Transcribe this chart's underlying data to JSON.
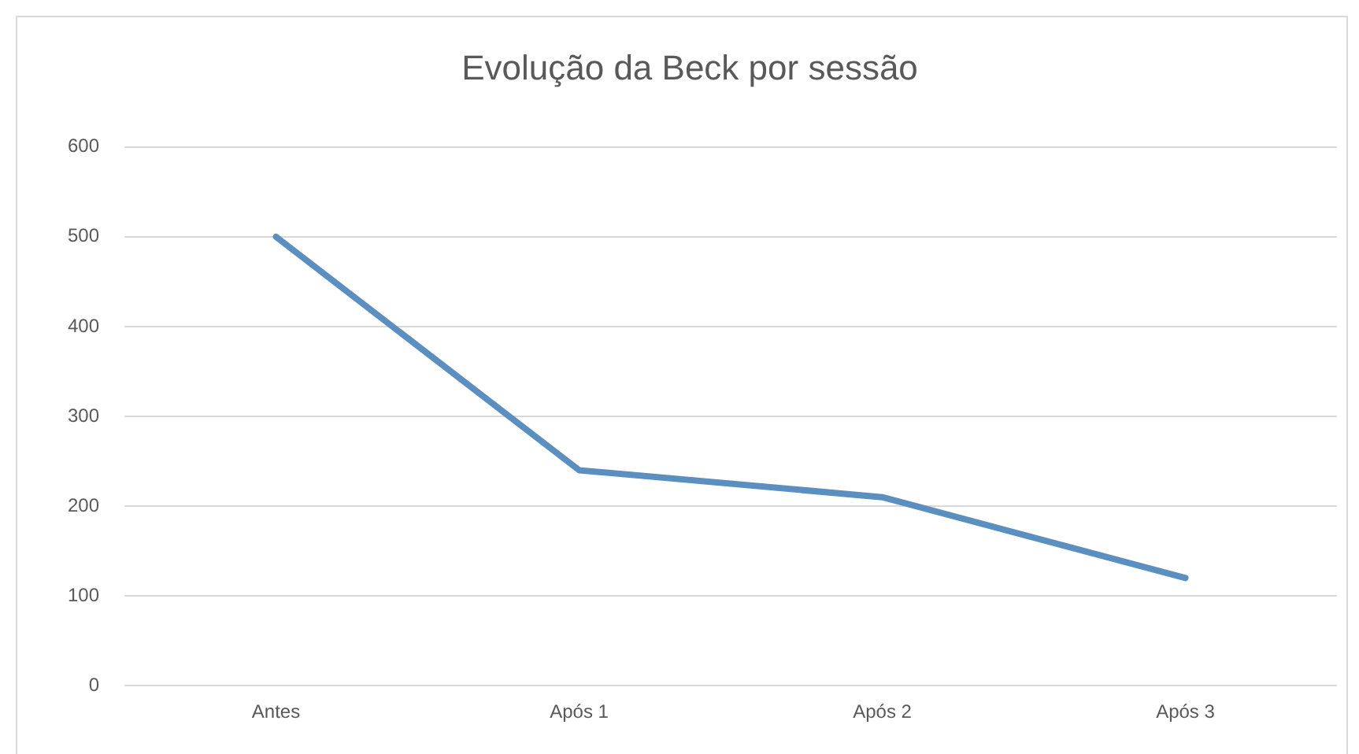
{
  "chart_data": {
    "type": "line",
    "title": "Evolução da Beck por sessão",
    "categories": [
      "Antes",
      "Após 1",
      "Após 2",
      "Após 3"
    ],
    "series": [
      {
        "color": "#5b8fc0",
        "values": [
          500,
          240,
          210,
          120
        ]
      }
    ],
    "ylim": [
      0,
      600
    ],
    "yticks": [
      0,
      100,
      200,
      300,
      400,
      500,
      600
    ],
    "grid": "y",
    "legend": false,
    "marker": "none",
    "line_style": "solid"
  }
}
